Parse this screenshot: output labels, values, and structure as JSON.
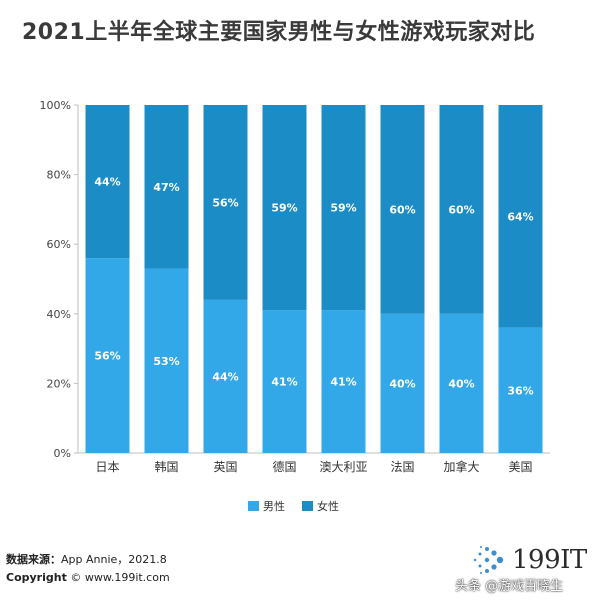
{
  "page": {
    "title": "2021上半年全球主要国家男性与女性游戏玩家对比",
    "source_label": "数据来源：",
    "source_text": "App Annie，2021.8",
    "copyright_label": "Copyright",
    "copyright_text": "© www.199it.com",
    "logo_text": "199IT",
    "watermark": "头条 @游戏百晓生"
  },
  "colors": {
    "male": "#33a8e8",
    "female": "#1c8cc6",
    "axis": "#bfbfbf",
    "label": "#ffffff"
  },
  "chart_data": {
    "type": "bar",
    "stacked": true,
    "percent": true,
    "categories": [
      "日本",
      "韩国",
      "英国",
      "德国",
      "澳大利亚",
      "法国",
      "加拿大",
      "美国"
    ],
    "series": [
      {
        "name": "男性",
        "values": [
          56,
          53,
          44,
          41,
          41,
          40,
          40,
          36
        ]
      },
      {
        "name": "女性",
        "values": [
          44,
          47,
          56,
          59,
          59,
          60,
          60,
          64
        ]
      }
    ],
    "value_labels": {
      "男性": [
        "56%",
        "53%",
        "44%",
        "41%",
        "41%",
        "40%",
        "40%",
        "36%"
      ],
      "女性": [
        "44%",
        "47%",
        "56%",
        "59%",
        "59%",
        "60%",
        "60%",
        "64%"
      ]
    },
    "ylim": [
      0,
      100
    ],
    "yticks": [
      "0%",
      "20%",
      "40%",
      "60%",
      "80%",
      "100%"
    ],
    "ytick_values": [
      0,
      20,
      40,
      60,
      80,
      100
    ],
    "legend": [
      "男性",
      "女性"
    ],
    "legend_position": "bottom",
    "grid": false
  }
}
